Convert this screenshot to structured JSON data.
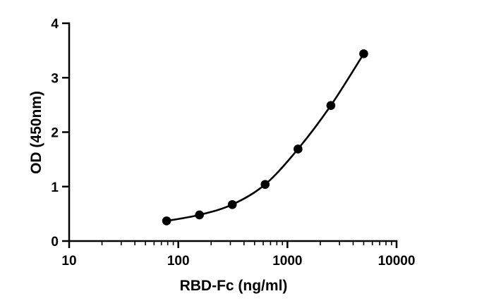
{
  "chart_data": {
    "type": "scatter",
    "title": "",
    "xlabel": "RBD-Fc (ng/ml)",
    "ylabel": "OD (450nm)",
    "x_scale": "log",
    "xlim": [
      10,
      10000
    ],
    "ylim": [
      0,
      4
    ],
    "x_ticks": [
      10,
      100,
      1000,
      10000
    ],
    "x_tick_labels": [
      "10",
      "100",
      "1000",
      "10000"
    ],
    "y_ticks": [
      0,
      1,
      2,
      3,
      4
    ],
    "y_tick_labels": [
      "0",
      "1",
      "2",
      "3",
      "4"
    ],
    "grid": false,
    "legend": "none",
    "color": "#000000",
    "series": [
      {
        "x": [
          78.125,
          156.25,
          312.5,
          625,
          1250,
          2500,
          5000
        ],
        "y": [
          0.37,
          0.48,
          0.67,
          1.04,
          1.69,
          2.49,
          3.44
        ],
        "fit_line": true,
        "marker": "circle"
      }
    ]
  }
}
